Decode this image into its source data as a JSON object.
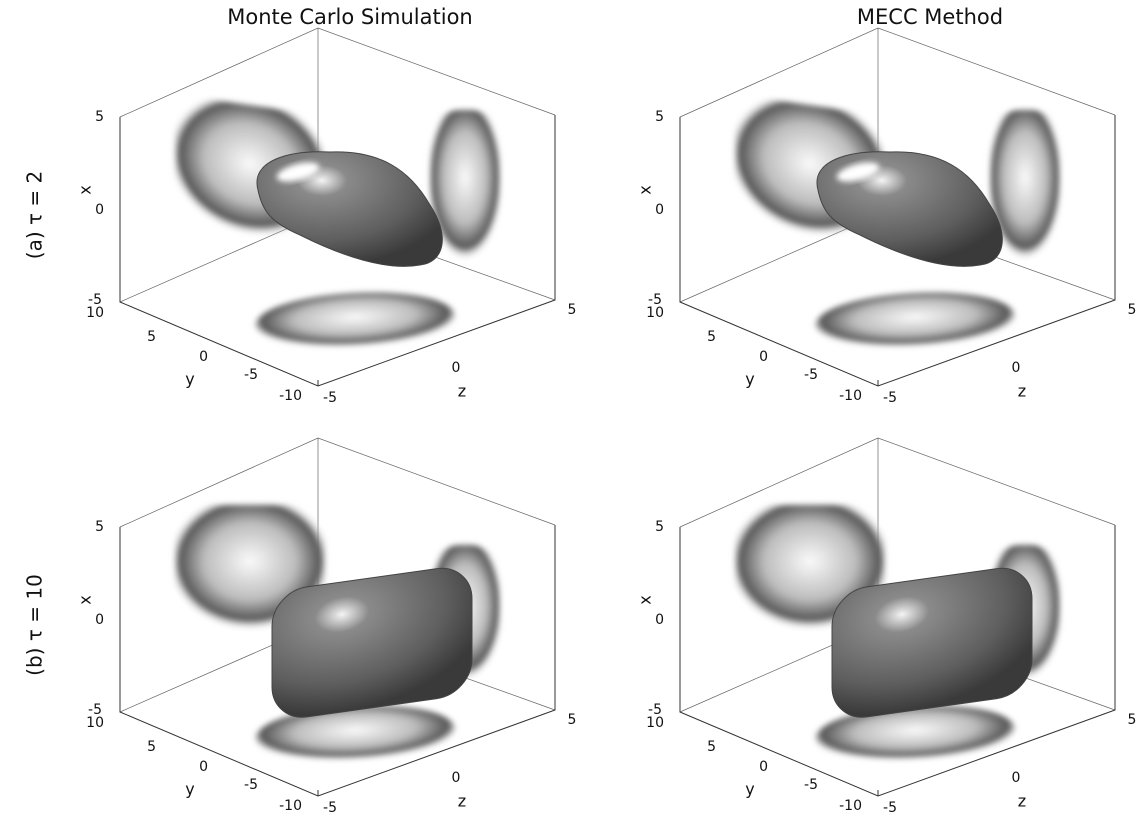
{
  "columns": [
    "Monte Carlo Simulation",
    "MECC Method"
  ],
  "rows": [
    "(a) τ = 2",
    "(b) τ = 10"
  ],
  "axes": {
    "x": {
      "label": "x",
      "ticks": [
        "5",
        "0",
        "-5"
      ]
    },
    "y": {
      "label": "y",
      "ticks": [
        "10",
        "5",
        "0",
        "-5",
        "-10"
      ]
    },
    "z": {
      "label": "z",
      "ticks": [
        "-5",
        "0",
        "5"
      ]
    }
  }
}
